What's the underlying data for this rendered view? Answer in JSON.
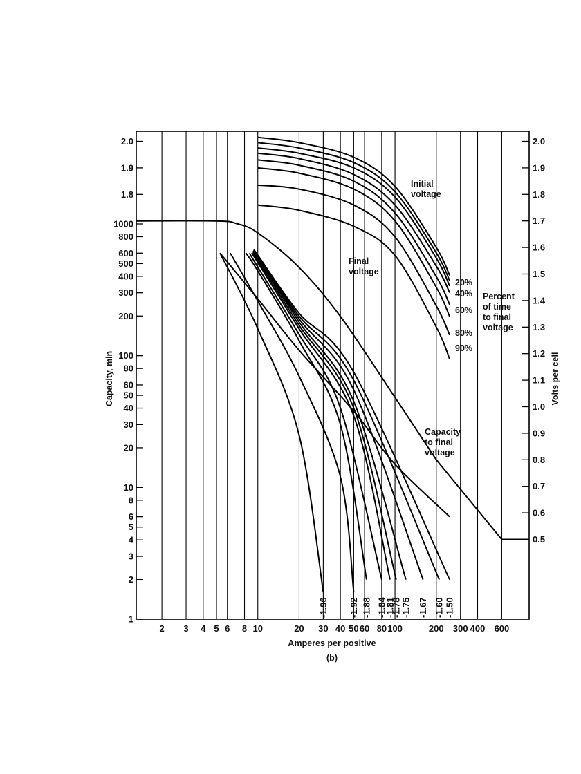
{
  "chart_data": {
    "type": "line",
    "subtitle": "(b)",
    "xlabel": "Amperes per positive",
    "ylabel_left": "Capacity, min",
    "ylabel_right": "Volts per cell",
    "x_scale": "log",
    "x_range": [
      1.3,
      950
    ],
    "x_ticks": [
      "2",
      "3",
      "4",
      "5",
      "6",
      "8",
      "10",
      "20",
      "30",
      "40",
      "50",
      "60",
      "80",
      "100",
      "200",
      "300",
      "400",
      "600"
    ],
    "y_left_scale": "log",
    "y_left_range": [
      1,
      1000
    ],
    "y_left_ticks": [
      "1",
      "2",
      "3",
      "4",
      "5",
      "6",
      "8",
      "10",
      "20",
      "30",
      "40",
      "50",
      "60",
      "80",
      "100",
      "200",
      "300",
      "400",
      "500",
      "600",
      "800",
      "1000"
    ],
    "y_left_voltage_ticks": [
      "1.8",
      "1.9",
      "2.0"
    ],
    "y_right_scale": "linear",
    "y_right_range": [
      0.5,
      2.0
    ],
    "y_right_ticks": [
      "0.5",
      "0.6",
      "0.7",
      "0.8",
      "0.9",
      "1.0",
      "1.1",
      "1.2",
      "1.3",
      "1.4",
      "1.5",
      "1.6",
      "1.7",
      "1.8",
      "1.9",
      "2.0"
    ],
    "grid": "vertical lines at x ticks",
    "annotations": {
      "initial_voltage": [
        "Initial",
        "voltage"
      ],
      "final_voltage": [
        "Final",
        "voltage"
      ],
      "capacity_to_final": [
        "Capacity",
        "to final",
        "voltage"
      ],
      "percent_of_time": [
        "Percent",
        "of time",
        "to final",
        "voltage"
      ]
    },
    "voltage_curves": [
      {
        "label": "20%",
        "x": [
          10,
          20,
          50,
          100,
          200,
          250
        ],
        "volts": [
          2.015,
          1.995,
          1.94,
          1.83,
          1.6,
          1.495
        ]
      },
      {
        "label": "",
        "x": [
          10,
          20,
          50,
          100,
          200,
          250
        ],
        "volts": [
          1.995,
          1.975,
          1.92,
          1.81,
          1.58,
          1.475
        ]
      },
      {
        "label": "40%",
        "x": [
          10,
          20,
          50,
          100,
          200,
          250
        ],
        "volts": [
          1.975,
          1.955,
          1.9,
          1.79,
          1.56,
          1.455
        ]
      },
      {
        "label": "",
        "x": [
          10,
          20,
          50,
          100,
          200,
          250
        ],
        "volts": [
          1.955,
          1.935,
          1.875,
          1.76,
          1.53,
          1.43
        ]
      },
      {
        "label": "60%",
        "x": [
          10,
          20,
          50,
          100,
          200,
          250
        ],
        "volts": [
          1.93,
          1.91,
          1.85,
          1.73,
          1.49,
          1.385
        ]
      },
      {
        "label": "",
        "x": [
          10,
          20,
          50,
          100,
          200,
          250
        ],
        "volts": [
          1.9,
          1.88,
          1.82,
          1.7,
          1.45,
          1.34
        ]
      },
      {
        "label": "80%",
        "x": [
          10,
          20,
          50,
          100,
          200,
          250
        ],
        "volts": [
          1.835,
          1.82,
          1.76,
          1.64,
          1.38,
          1.27
        ]
      },
      {
        "label": "90%",
        "x": [
          10,
          20,
          50,
          100,
          200,
          250
        ],
        "volts": [
          1.76,
          1.74,
          1.68,
          1.57,
          1.3,
          1.18
        ]
      }
    ],
    "final_voltage_curve": {
      "x": [
        1.3,
        5,
        7,
        10,
        20,
        40,
        100,
        200,
        600,
        950
      ],
      "volts": [
        1.7,
        1.7,
        1.69,
        1.655,
        1.525,
        1.34,
        1.035,
        0.8,
        0.5,
        0.5
      ]
    },
    "capacity_curve": {
      "x": [
        5.3,
        10,
        20,
        50,
        100,
        250
      ],
      "minutes": [
        600,
        270,
        110,
        38,
        15,
        6
      ]
    },
    "capacity_curves": [
      {
        "label": "1.96",
        "x": [
          5.3,
          10,
          20,
          30
        ],
        "minutes": [
          600,
          160,
          25,
          1.6
        ]
      },
      {
        "label": "1.92",
        "x": [
          6.3,
          10,
          20,
          40,
          50
        ],
        "minutes": [
          600,
          260,
          70,
          12,
          1.6
        ]
      },
      {
        "label": "1.88",
        "x": [
          8.2,
          10,
          20,
          40,
          62
        ],
        "minutes": [
          600,
          440,
          130,
          30,
          2
        ]
      },
      {
        "label": "1.84",
        "x": [
          8.7,
          10,
          20,
          40,
          80
        ],
        "minutes": [
          600,
          470,
          145,
          40,
          2
        ]
      },
      {
        "label": "1.81",
        "x": [
          9.0,
          10,
          20,
          50,
          92
        ],
        "minutes": [
          600,
          510,
          160,
          35,
          2
        ]
      },
      {
        "label": "1.78",
        "x": [
          9.2,
          10,
          20,
          50,
          102
        ],
        "minutes": [
          600,
          530,
          170,
          40,
          2
        ]
      },
      {
        "label": "1.75",
        "x": [
          9.4,
          10,
          20,
          50,
          120
        ],
        "minutes": [
          600,
          550,
          180,
          45,
          2
        ]
      },
      {
        "label": "1.67",
        "x": [
          9.5,
          10,
          20,
          50,
          160
        ],
        "minutes": [
          600,
          560,
          190,
          55,
          2
        ]
      },
      {
        "label": "1.60",
        "x": [
          9.6,
          10,
          20,
          50,
          210
        ],
        "minutes": [
          600,
          570,
          200,
          65,
          2
        ]
      },
      {
        "label": "1.50",
        "x": [
          9.7,
          10,
          20,
          50,
          250
        ],
        "minutes": [
          600,
          580,
          210,
          75,
          2
        ]
      }
    ]
  }
}
